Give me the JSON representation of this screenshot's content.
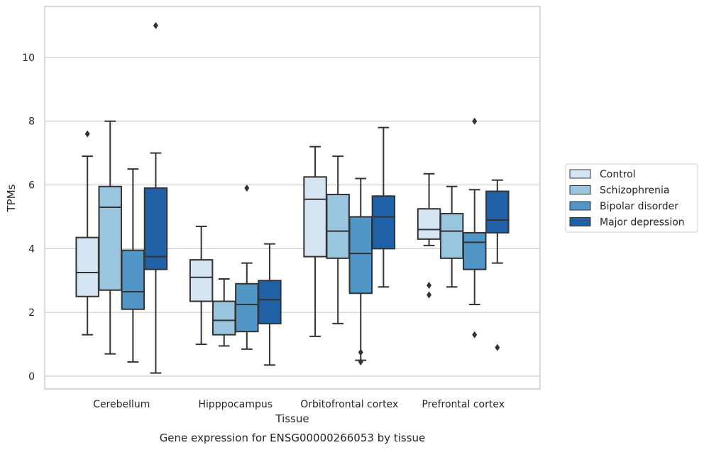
{
  "caption": "Gene expression for ENSG00000266053 by tissue",
  "chart_data": {
    "type": "box",
    "xlabel": "Tissue",
    "ylabel": "TPMs",
    "ylim": [
      -0.4,
      11.6
    ],
    "yticks": [
      0,
      2,
      4,
      6,
      8,
      10
    ],
    "grid": "horizontal",
    "legend_position": "right",
    "categories": [
      "Cerebellum",
      "Hipppocampus",
      "Orbitofrontal cortex",
      "Prefrontal cortex"
    ],
    "series": [
      {
        "name": "Control",
        "color": "#d6e5f4",
        "boxes": [
          {
            "whislo": 1.3,
            "q1": 2.5,
            "med": 3.25,
            "q3": 4.35,
            "whishi": 6.9,
            "fliers": [
              7.6
            ]
          },
          {
            "whislo": 1.0,
            "q1": 2.35,
            "med": 3.1,
            "q3": 3.65,
            "whishi": 4.7,
            "fliers": []
          },
          {
            "whislo": 1.25,
            "q1": 3.75,
            "med": 5.55,
            "q3": 6.25,
            "whishi": 7.2,
            "fliers": []
          },
          {
            "whislo": 4.1,
            "q1": 4.3,
            "med": 4.6,
            "q3": 5.25,
            "whishi": 6.35,
            "fliers": [
              2.85,
              2.55
            ]
          }
        ]
      },
      {
        "name": "Schizophrenia",
        "color": "#9ac5df",
        "boxes": [
          {
            "whislo": 0.7,
            "q1": 2.7,
            "med": 5.3,
            "q3": 5.95,
            "whishi": 8.0,
            "fliers": []
          },
          {
            "whislo": 0.95,
            "q1": 1.3,
            "med": 1.75,
            "q3": 2.35,
            "whishi": 3.05,
            "fliers": []
          },
          {
            "whislo": 1.65,
            "q1": 3.7,
            "med": 4.55,
            "q3": 5.7,
            "whishi": 6.9,
            "fliers": []
          },
          {
            "whislo": 2.8,
            "q1": 3.7,
            "med": 4.55,
            "q3": 5.1,
            "whishi": 5.95,
            "fliers": []
          }
        ]
      },
      {
        "name": "Bipolar disorder",
        "color": "#5097c8",
        "boxes": [
          {
            "whislo": 0.45,
            "q1": 2.1,
            "med": 2.65,
            "q3": 3.95,
            "whishi": 6.5,
            "fliers": []
          },
          {
            "whislo": 0.85,
            "q1": 1.4,
            "med": 2.25,
            "q3": 2.9,
            "whishi": 3.55,
            "fliers": [
              5.9
            ]
          },
          {
            "whislo": 0.5,
            "q1": 2.6,
            "med": 3.85,
            "q3": 5.0,
            "whishi": 6.2,
            "fliers": [
              0.75,
              0.45
            ]
          },
          {
            "whislo": 2.25,
            "q1": 3.35,
            "med": 4.2,
            "q3": 4.5,
            "whishi": 5.85,
            "fliers": [
              8.0,
              1.3
            ]
          }
        ]
      },
      {
        "name": "Major depression",
        "color": "#2060a6",
        "boxes": [
          {
            "whislo": 0.1,
            "q1": 3.35,
            "med": 3.75,
            "q3": 5.9,
            "whishi": 7.0,
            "fliers": [
              11.0
            ]
          },
          {
            "whislo": 0.35,
            "q1": 1.65,
            "med": 2.4,
            "q3": 3.0,
            "whishi": 4.15,
            "fliers": []
          },
          {
            "whislo": 2.8,
            "q1": 4.0,
            "med": 5.0,
            "q3": 5.65,
            "whishi": 7.8,
            "fliers": []
          },
          {
            "whislo": 3.55,
            "q1": 4.5,
            "med": 4.9,
            "q3": 5.8,
            "whishi": 6.15,
            "fliers": [
              0.9
            ]
          }
        ]
      }
    ]
  }
}
